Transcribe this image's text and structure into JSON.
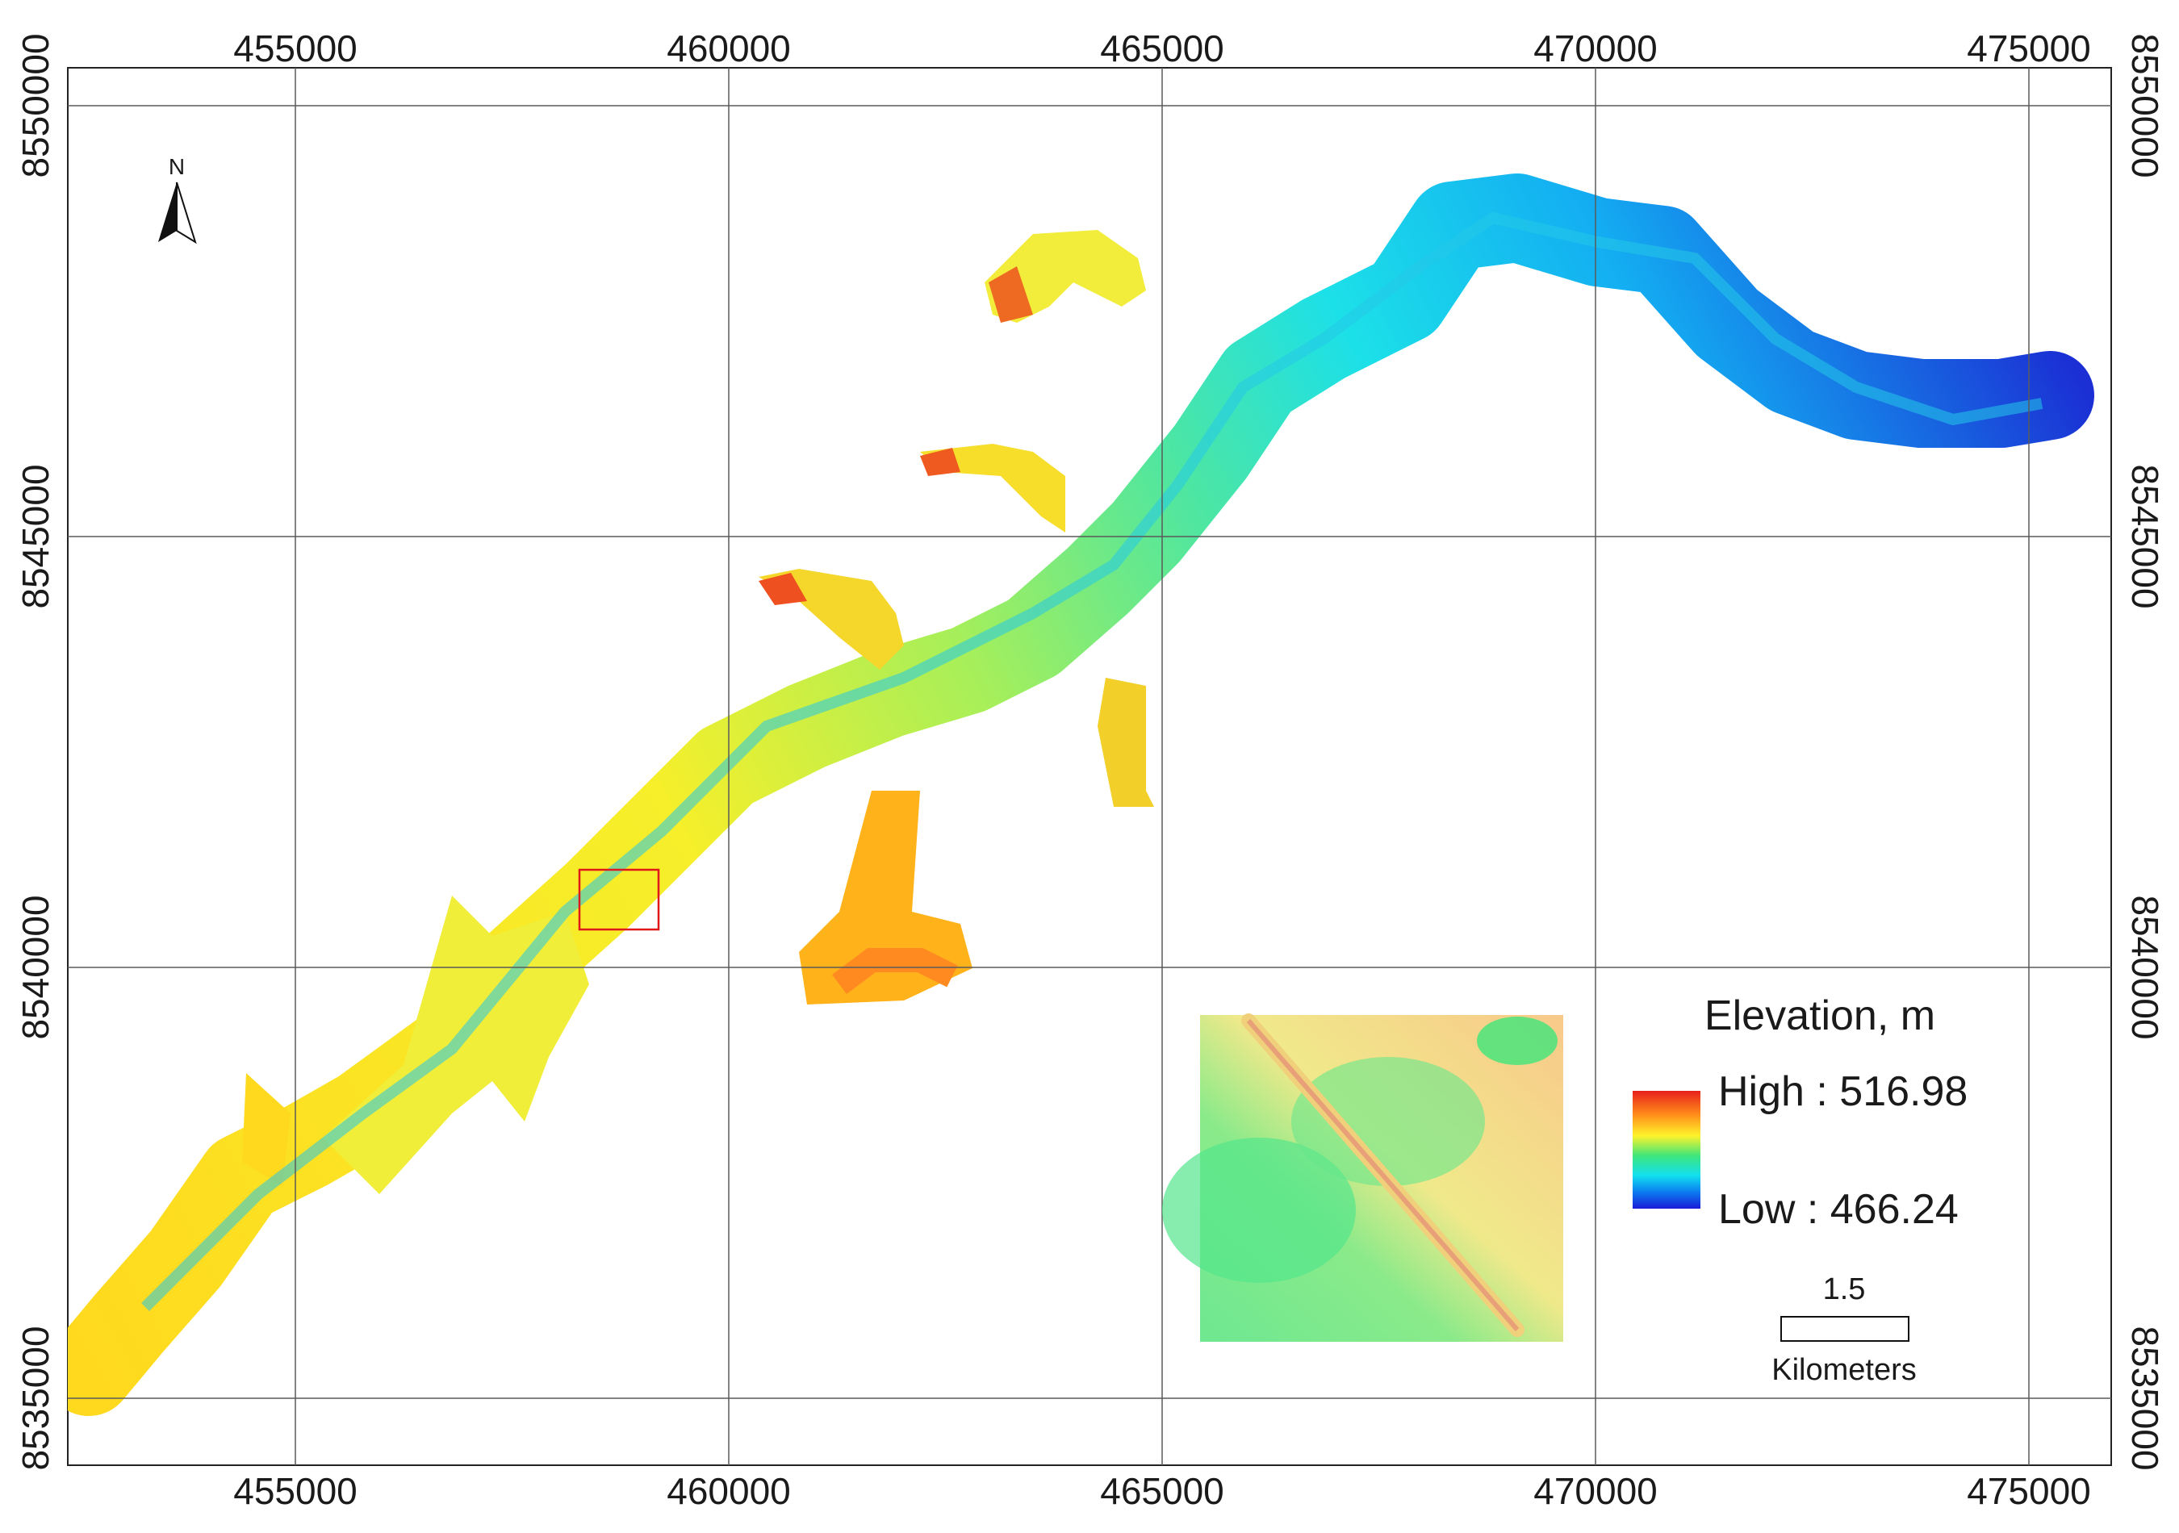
{
  "map": {
    "x_ticks": [
      "455000",
      "460000",
      "465000",
      "470000",
      "475000"
    ],
    "y_ticks": [
      "8550000",
      "8545000",
      "8540000",
      "8535000"
    ],
    "north_arrow_label": "N"
  },
  "legend": {
    "title": "Elevation, m",
    "high_label": "High : 516.98",
    "low_label": "Low : 466.24",
    "ramp_colors": [
      "#e8201c",
      "#ff8c1a",
      "#fff32a",
      "#3ee67a",
      "#12e0f0",
      "#0b7cf0",
      "#1a1ad8"
    ]
  },
  "scale_bar": {
    "value": "1.5",
    "unit": "Kilometers"
  },
  "colors": {
    "grid": "#5a5a5a",
    "frame": "#222222",
    "highlight_box": "#e0181c",
    "ramp_high": "#e8201c",
    "ramp_mid_high": "#ffd21a",
    "ramp_mid": "#4ce87a",
    "ramp_mid_low": "#19d8f0",
    "ramp_low": "#1f2fd6"
  }
}
